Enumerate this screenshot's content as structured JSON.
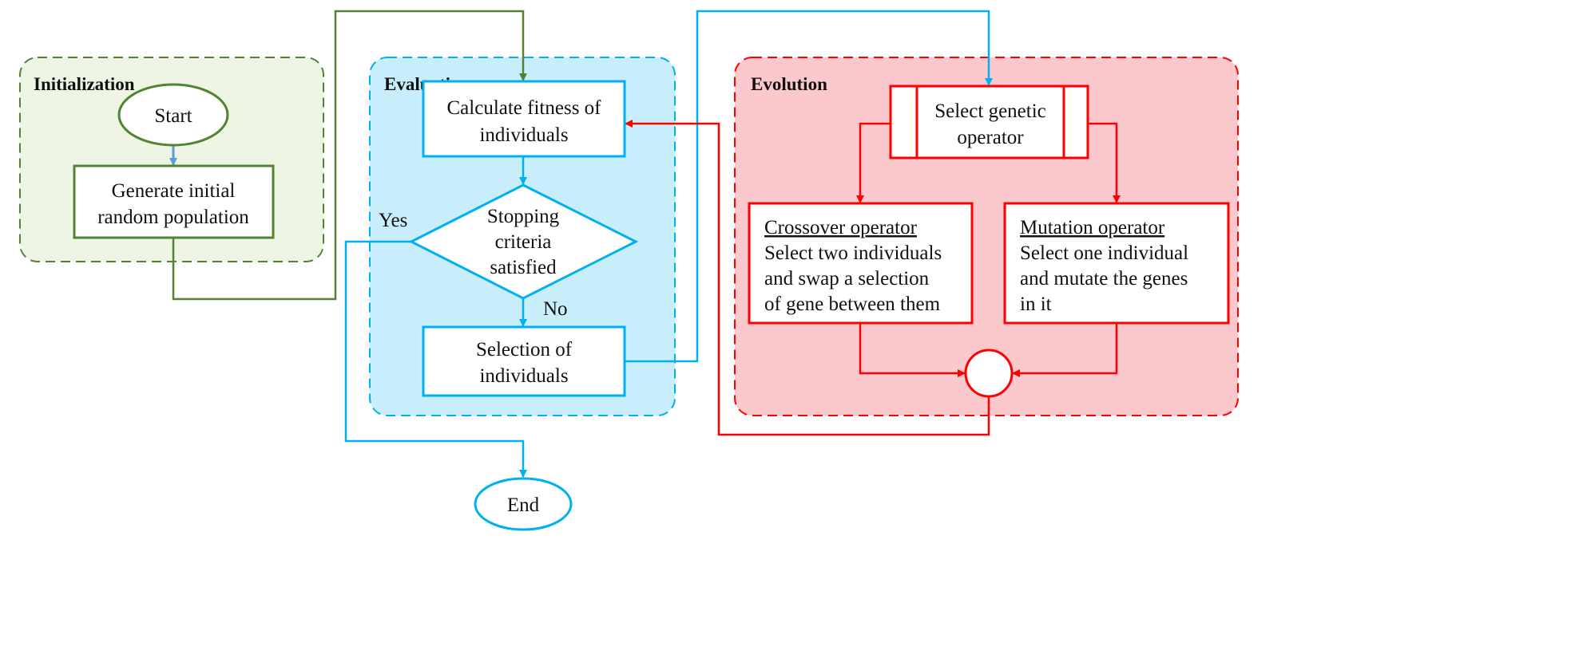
{
  "colors": {
    "green": "#548235",
    "blue": "#00b0f0",
    "red": "#ff0000",
    "start_arrow": "#5b9bd5",
    "green_fill": "#eef5e4",
    "blue_fill": "#c8eefb",
    "red_fill": "#fbc9cd"
  },
  "sections": {
    "initialization": {
      "title": "Initialization"
    },
    "evaluation": {
      "title": "Evaluation"
    },
    "evolution": {
      "title": "Evolution"
    }
  },
  "nodes": {
    "start": "Start",
    "generate": [
      "Generate initial",
      "random population"
    ],
    "calculate": [
      "Calculate fitness of",
      "individuals"
    ],
    "stopping": [
      "Stopping",
      "criteria",
      "satisfied"
    ],
    "selection": [
      "Selection of",
      "individuals"
    ],
    "end": "End",
    "select_operator": [
      "Select genetic",
      "operator"
    ],
    "crossover": {
      "title": "Crossover operator",
      "lines": [
        "Select two individuals",
        "and swap a selection",
        "of gene between them"
      ]
    },
    "mutation": {
      "title": "Mutation operator",
      "lines": [
        "Select one individual",
        "and mutate the genes",
        "in it"
      ]
    }
  },
  "edge_labels": {
    "yes": "Yes",
    "no": "No"
  }
}
